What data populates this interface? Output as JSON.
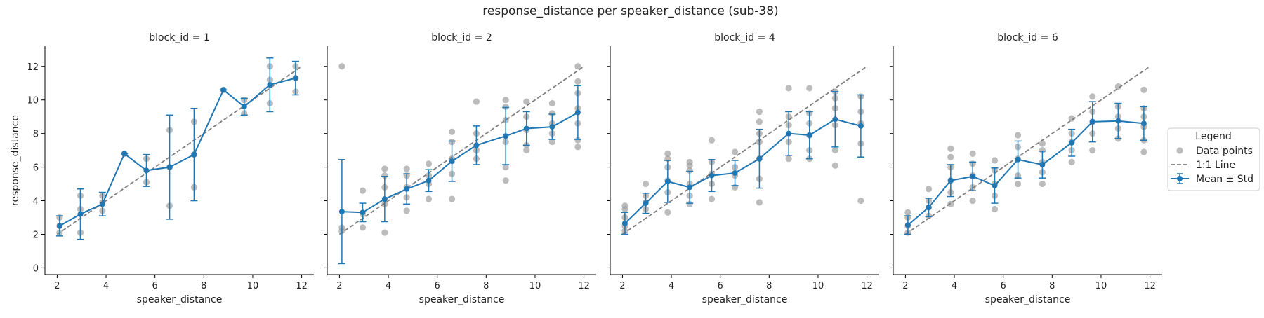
{
  "figure": {
    "title": "response_distance per speaker_distance (sub-38)"
  },
  "legend": {
    "title": "Legend",
    "placement": "right",
    "entries": [
      {
        "label": "Data points",
        "kind": "scatter",
        "color": "#a0a0a0"
      },
      {
        "label": "1:1 Line",
        "kind": "dashed-line",
        "color": "#7f7f7f"
      },
      {
        "label": "Mean ± Std",
        "kind": "errorbar-line",
        "color": "#1f77b4"
      }
    ]
  },
  "colors": {
    "mean": "#1f77b4",
    "points": "#a0a0a0",
    "identity": "#7f7f7f"
  },
  "chart_data": [
    {
      "type": "line",
      "title": "block_id = 1",
      "xlabel": "speaker_distance",
      "ylabel": "response_distance",
      "xlim": [
        1.5,
        12.5
      ],
      "ylim": [
        -0.4,
        13.2
      ],
      "xticks": [
        2,
        4,
        6,
        8,
        10,
        12
      ],
      "yticks": [
        0,
        2,
        4,
        6,
        8,
        10,
        12
      ],
      "identity_line": [
        [
          2,
          2
        ],
        [
          12,
          12
        ]
      ],
      "mean": {
        "x": [
          2.1,
          2.95,
          3.85,
          4.75,
          5.65,
          6.6,
          7.6,
          8.8,
          9.65,
          10.7,
          11.75
        ],
        "y": [
          2.5,
          3.2,
          3.8,
          6.8,
          5.8,
          6.0,
          6.75,
          10.6,
          9.6,
          10.9,
          11.3
        ],
        "std": [
          0.6,
          1.5,
          0.7,
          0.0,
          0.95,
          3.1,
          2.75,
          0.0,
          0.5,
          1.6,
          1.0
        ]
      },
      "points": [
        [
          2.1,
          2.1
        ],
        [
          2.1,
          2.5
        ],
        [
          2.1,
          3.0
        ],
        [
          2.95,
          2.1
        ],
        [
          2.95,
          3.5
        ],
        [
          2.95,
          4.3
        ],
        [
          3.85,
          3.4
        ],
        [
          3.85,
          3.9
        ],
        [
          3.85,
          4.3
        ],
        [
          4.75,
          6.8
        ],
        [
          5.65,
          5.1
        ],
        [
          5.65,
          6.5
        ],
        [
          6.6,
          3.7
        ],
        [
          6.6,
          6.0
        ],
        [
          6.6,
          8.2
        ],
        [
          7.6,
          4.8
        ],
        [
          7.6,
          6.75
        ],
        [
          7.6,
          8.7
        ],
        [
          8.8,
          10.6
        ],
        [
          9.65,
          9.2
        ],
        [
          9.65,
          10.0
        ],
        [
          10.7,
          9.8
        ],
        [
          10.7,
          11.2
        ],
        [
          10.7,
          12.0
        ],
        [
          11.75,
          10.5
        ],
        [
          11.75,
          11.3
        ],
        [
          11.75,
          12.0
        ]
      ]
    },
    {
      "type": "line",
      "title": "block_id = 2",
      "xlabel": "speaker_distance",
      "ylabel": "",
      "xlim": [
        1.5,
        12.5
      ],
      "ylim": [
        -0.4,
        13.2
      ],
      "xticks": [
        2,
        4,
        6,
        8,
        10,
        12
      ],
      "yticks": [
        0,
        2,
        4,
        6,
        8,
        10,
        12
      ],
      "identity_line": [
        [
          2,
          2
        ],
        [
          12,
          12
        ]
      ],
      "mean": {
        "x": [
          2.1,
          2.95,
          3.85,
          4.75,
          5.65,
          6.6,
          7.6,
          8.8,
          9.65,
          10.7,
          11.75
        ],
        "y": [
          3.35,
          3.3,
          4.1,
          4.7,
          5.2,
          6.35,
          7.3,
          7.85,
          8.3,
          8.4,
          9.25
        ],
        "std": [
          3.1,
          0.55,
          1.35,
          0.9,
          0.65,
          1.2,
          1.15,
          1.7,
          1.0,
          0.75,
          1.6
        ]
      },
      "points": [
        [
          2.1,
          12.0
        ],
        [
          2.1,
          2.2
        ],
        [
          2.1,
          2.4
        ],
        [
          2.95,
          2.4
        ],
        [
          2.95,
          3.2
        ],
        [
          2.95,
          4.6
        ],
        [
          3.85,
          2.1
        ],
        [
          3.85,
          3.8
        ],
        [
          3.85,
          4.8
        ],
        [
          3.85,
          5.5
        ],
        [
          3.85,
          5.9
        ],
        [
          4.75,
          3.4
        ],
        [
          4.75,
          4.2
        ],
        [
          4.75,
          4.8
        ],
        [
          4.75,
          5.5
        ],
        [
          4.75,
          5.9
        ],
        [
          5.65,
          4.1
        ],
        [
          5.65,
          5.0
        ],
        [
          5.65,
          5.5
        ],
        [
          5.65,
          6.2
        ],
        [
          6.6,
          4.1
        ],
        [
          6.6,
          5.6
        ],
        [
          6.6,
          6.5
        ],
        [
          6.6,
          7.5
        ],
        [
          6.6,
          8.1
        ],
        [
          7.6,
          6.5
        ],
        [
          7.6,
          7.0
        ],
        [
          7.6,
          8.0
        ],
        [
          7.6,
          9.9
        ],
        [
          8.8,
          5.2
        ],
        [
          8.8,
          6.0
        ],
        [
          8.8,
          7.5
        ],
        [
          8.8,
          8.8
        ],
        [
          8.8,
          9.6
        ],
        [
          8.8,
          10.0
        ],
        [
          9.65,
          7.0
        ],
        [
          9.65,
          7.3
        ],
        [
          9.65,
          8.2
        ],
        [
          9.65,
          9.0
        ],
        [
          9.65,
          9.9
        ],
        [
          10.7,
          7.5
        ],
        [
          10.7,
          8.0
        ],
        [
          10.7,
          8.6
        ],
        [
          10.7,
          9.2
        ],
        [
          10.7,
          9.8
        ],
        [
          11.75,
          7.2
        ],
        [
          11.75,
          7.6
        ],
        [
          11.75,
          8.6
        ],
        [
          11.75,
          9.5
        ],
        [
          11.75,
          10.4
        ],
        [
          11.75,
          11.1
        ],
        [
          11.75,
          12.0
        ]
      ]
    },
    {
      "type": "line",
      "title": "block_id = 4",
      "xlabel": "speaker_distance",
      "ylabel": "",
      "xlim": [
        1.5,
        12.5
      ],
      "ylim": [
        -0.4,
        13.2
      ],
      "xticks": [
        2,
        4,
        6,
        8,
        10,
        12
      ],
      "yticks": [
        0,
        2,
        4,
        6,
        8,
        10,
        12
      ],
      "identity_line": [
        [
          2,
          2
        ],
        [
          12,
          12
        ]
      ],
      "mean": {
        "x": [
          2.1,
          2.95,
          3.85,
          4.75,
          5.65,
          6.6,
          7.6,
          8.8,
          9.65,
          10.7,
          11.75
        ],
        "y": [
          2.65,
          3.85,
          5.15,
          4.8,
          5.5,
          5.65,
          6.5,
          8.0,
          7.9,
          8.85,
          8.45
        ],
        "std": [
          0.65,
          0.6,
          1.25,
          0.95,
          0.95,
          0.75,
          1.75,
          1.3,
          1.4,
          1.65,
          1.85
        ]
      },
      "points": [
        [
          2.1,
          2.2
        ],
        [
          2.1,
          2.5
        ],
        [
          2.1,
          3.0
        ],
        [
          2.1,
          3.5
        ],
        [
          2.1,
          3.7
        ],
        [
          2.95,
          3.5
        ],
        [
          2.95,
          3.9
        ],
        [
          2.95,
          4.3
        ],
        [
          2.95,
          5.0
        ],
        [
          3.85,
          3.3
        ],
        [
          3.85,
          4.5
        ],
        [
          3.85,
          5.2
        ],
        [
          3.85,
          6.0
        ],
        [
          3.85,
          6.5
        ],
        [
          3.85,
          6.8
        ],
        [
          4.75,
          3.8
        ],
        [
          4.75,
          4.3
        ],
        [
          4.75,
          5.0
        ],
        [
          4.75,
          5.8
        ],
        [
          4.75,
          6.1
        ],
        [
          4.75,
          6.3
        ],
        [
          5.65,
          4.1
        ],
        [
          5.65,
          5.0
        ],
        [
          5.65,
          5.6
        ],
        [
          5.65,
          6.3
        ],
        [
          5.65,
          7.6
        ],
        [
          6.6,
          4.8
        ],
        [
          6.6,
          5.5
        ],
        [
          6.6,
          6.0
        ],
        [
          6.6,
          6.9
        ],
        [
          7.6,
          3.9
        ],
        [
          7.6,
          5.3
        ],
        [
          7.6,
          6.5
        ],
        [
          7.6,
          7.5
        ],
        [
          7.6,
          8.0
        ],
        [
          7.6,
          8.7
        ],
        [
          7.6,
          9.3
        ],
        [
          8.8,
          6.5
        ],
        [
          8.8,
          7.5
        ],
        [
          8.8,
          8.5
        ],
        [
          8.8,
          9.0
        ],
        [
          8.8,
          10.7
        ],
        [
          9.65,
          6.5
        ],
        [
          9.65,
          7.0
        ],
        [
          9.65,
          7.9
        ],
        [
          9.65,
          8.6
        ],
        [
          9.65,
          9.2
        ],
        [
          9.65,
          10.7
        ],
        [
          10.7,
          6.1
        ],
        [
          10.7,
          7.0
        ],
        [
          10.7,
          8.5
        ],
        [
          10.7,
          9.5
        ],
        [
          10.7,
          10.1
        ],
        [
          10.7,
          10.5
        ],
        [
          11.75,
          4.0
        ],
        [
          11.75,
          7.4
        ],
        [
          11.75,
          8.6
        ],
        [
          11.75,
          9.3
        ],
        [
          11.75,
          10.2
        ]
      ]
    },
    {
      "type": "line",
      "title": "block_id = 6",
      "xlabel": "speaker_distance",
      "ylabel": "",
      "xlim": [
        1.5,
        12.5
      ],
      "ylim": [
        -0.4,
        13.2
      ],
      "xticks": [
        2,
        4,
        6,
        8,
        10,
        12
      ],
      "yticks": [
        0,
        2,
        4,
        6,
        8,
        10,
        12
      ],
      "identity_line": [
        [
          2,
          2
        ],
        [
          12,
          12
        ]
      ],
      "mean": {
        "x": [
          2.1,
          2.95,
          3.85,
          4.75,
          5.65,
          6.6,
          7.6,
          8.8,
          9.65,
          10.7,
          11.75
        ],
        "y": [
          2.55,
          3.6,
          5.2,
          5.45,
          4.9,
          6.45,
          6.15,
          7.45,
          8.7,
          8.75,
          8.6
        ],
        "std": [
          0.55,
          0.55,
          0.95,
          0.85,
          1.05,
          1.1,
          0.8,
          0.8,
          1.2,
          1.05,
          1.0
        ]
      },
      "points": [
        [
          2.1,
          2.1
        ],
        [
          2.1,
          2.5
        ],
        [
          2.1,
          3.0
        ],
        [
          2.1,
          3.3
        ],
        [
          2.95,
          3.1
        ],
        [
          2.95,
          3.6
        ],
        [
          2.95,
          4.0
        ],
        [
          2.95,
          4.7
        ],
        [
          3.85,
          3.8
        ],
        [
          3.85,
          4.5
        ],
        [
          3.85,
          5.2
        ],
        [
          3.85,
          6.0
        ],
        [
          3.85,
          6.6
        ],
        [
          3.85,
          7.1
        ],
        [
          4.75,
          4.0
        ],
        [
          4.75,
          4.8
        ],
        [
          4.75,
          5.5
        ],
        [
          4.75,
          6.2
        ],
        [
          4.75,
          6.8
        ],
        [
          5.65,
          3.5
        ],
        [
          5.65,
          4.3
        ],
        [
          5.65,
          5.0
        ],
        [
          5.65,
          5.8
        ],
        [
          5.65,
          6.4
        ],
        [
          6.6,
          5.0
        ],
        [
          6.6,
          5.5
        ],
        [
          6.6,
          6.5
        ],
        [
          6.6,
          7.2
        ],
        [
          6.6,
          7.9
        ],
        [
          7.6,
          5.0
        ],
        [
          7.6,
          5.7
        ],
        [
          7.6,
          6.3
        ],
        [
          7.6,
          7.0
        ],
        [
          7.6,
          7.4
        ],
        [
          8.8,
          6.3
        ],
        [
          8.8,
          7.0
        ],
        [
          8.8,
          7.5
        ],
        [
          8.8,
          8.0
        ],
        [
          8.8,
          8.9
        ],
        [
          9.65,
          7.0
        ],
        [
          9.65,
          8.0
        ],
        [
          9.65,
          8.7
        ],
        [
          9.65,
          9.3
        ],
        [
          9.65,
          10.2
        ],
        [
          10.7,
          7.7
        ],
        [
          10.7,
          8.3
        ],
        [
          10.7,
          9.0
        ],
        [
          10.7,
          9.6
        ],
        [
          10.7,
          10.8
        ],
        [
          11.75,
          6.9
        ],
        [
          11.75,
          7.6
        ],
        [
          11.75,
          8.4
        ],
        [
          11.75,
          9.0
        ],
        [
          11.75,
          9.5
        ],
        [
          11.75,
          10.6
        ]
      ]
    }
  ]
}
